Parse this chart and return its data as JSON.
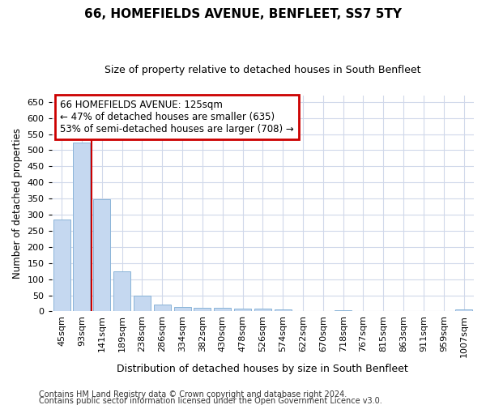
{
  "title1": "66, HOMEFIELDS AVENUE, BENFLEET, SS7 5TY",
  "title2": "Size of property relative to detached houses in South Benfleet",
  "xlabel": "Distribution of detached houses by size in South Benfleet",
  "ylabel": "Number of detached properties",
  "footnote1": "Contains HM Land Registry data © Crown copyright and database right 2024.",
  "footnote2": "Contains public sector information licensed under the Open Government Licence v3.0.",
  "categories": [
    "45sqm",
    "93sqm",
    "141sqm",
    "189sqm",
    "238sqm",
    "286sqm",
    "334sqm",
    "382sqm",
    "430sqm",
    "478sqm",
    "526sqm",
    "574sqm",
    "622sqm",
    "670sqm",
    "718sqm",
    "767sqm",
    "815sqm",
    "863sqm",
    "911sqm",
    "959sqm",
    "1007sqm"
  ],
  "values": [
    285,
    523,
    347,
    124,
    48,
    20,
    13,
    10,
    10,
    8,
    8,
    5,
    0,
    0,
    4,
    0,
    0,
    0,
    0,
    0,
    5
  ],
  "bar_color": "#c5d8f0",
  "bar_edge_color": "#8ab4d8",
  "ylim": [
    0,
    670
  ],
  "yticks": [
    0,
    50,
    100,
    150,
    200,
    250,
    300,
    350,
    400,
    450,
    500,
    550,
    600,
    650
  ],
  "vline_color": "#cc0000",
  "annotation_line1": "66 HOMEFIELDS AVENUE: 125sqm",
  "annotation_line2": "← 47% of detached houses are smaller (635)",
  "annotation_line3": "53% of semi-detached houses are larger (708) →",
  "annotation_box_color": "#cc0000",
  "bg_color": "#ffffff",
  "plot_bg_color": "#ffffff",
  "grid_color": "#d0d8ea",
  "title1_fontsize": 11,
  "title2_fontsize": 9,
  "annotation_fontsize": 8.5,
  "ylabel_fontsize": 8.5,
  "xlabel_fontsize": 9,
  "tick_fontsize": 8,
  "footnote_fontsize": 7
}
